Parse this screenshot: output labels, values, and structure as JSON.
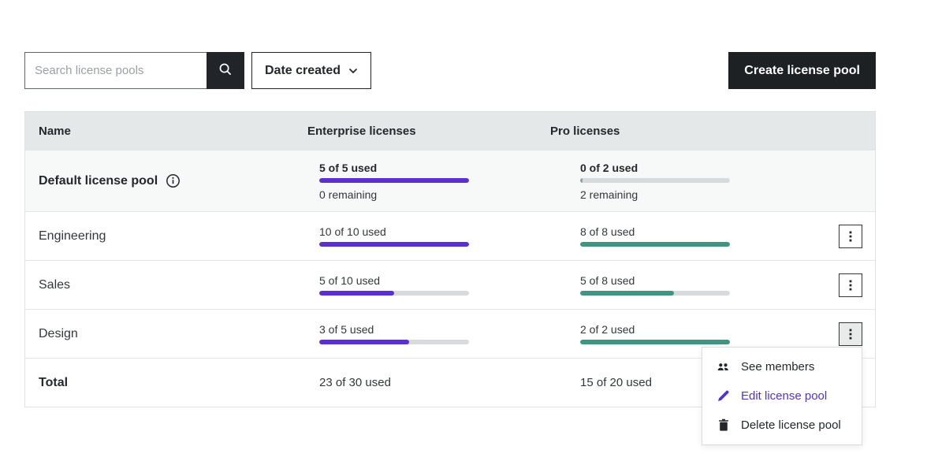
{
  "toolbar": {
    "search_placeholder": "Search license pools",
    "sort_label": "Date created",
    "create_button": "Create license pool"
  },
  "table": {
    "columns": [
      "Name",
      "Enterprise licenses",
      "Pro licenses"
    ],
    "rows": [
      {
        "name": "Default license pool",
        "bold": true,
        "info_icon": true,
        "shaded": true,
        "height": 78,
        "enterprise": {
          "label": "5 of 5 used",
          "used": 5,
          "total": 5,
          "remaining": "0 remaining",
          "bold_label": true
        },
        "pro": {
          "label": "0 of 2 used",
          "used": 0,
          "total": 2,
          "remaining": "2 remaining",
          "bold_label": true
        },
        "menu_button": false
      },
      {
        "name": "Engineering",
        "height": 62,
        "enterprise": {
          "label": "10 of 10 used",
          "used": 10,
          "total": 10
        },
        "pro": {
          "label": "8 of 8 used",
          "used": 8,
          "total": 8
        },
        "menu_button": true
      },
      {
        "name": "Sales",
        "height": 62,
        "enterprise": {
          "label": "5 of 10 used",
          "used": 5,
          "total": 10
        },
        "pro": {
          "label": "5 of 8 used",
          "used": 5,
          "total": 8
        },
        "menu_button": true
      },
      {
        "name": "Design",
        "height": 62,
        "enterprise": {
          "label": "3 of 5 used",
          "used": 3,
          "total": 5
        },
        "pro": {
          "label": "2 of 2 used",
          "used": 2,
          "total": 2
        },
        "menu_button": true,
        "menu_open": true
      },
      {
        "name": "Total",
        "bold": true,
        "height": 62,
        "enterprise_text": "23 of 30 used",
        "pro_text": "15 of 20 used",
        "menu_button": false
      }
    ]
  },
  "context_menu": {
    "items": [
      {
        "icon": "users-icon",
        "label": "See members"
      },
      {
        "icon": "pencil-icon",
        "label": "Edit license pool",
        "accent": true
      },
      {
        "icon": "trash-icon",
        "label": "Delete license pool"
      }
    ]
  },
  "colors": {
    "enterprise_bar": "#5b2fd1",
    "pro_bar": "#3f9582",
    "bar_track": "#d7dbdc",
    "accent_text": "#5133d1",
    "dark": "#212428"
  }
}
